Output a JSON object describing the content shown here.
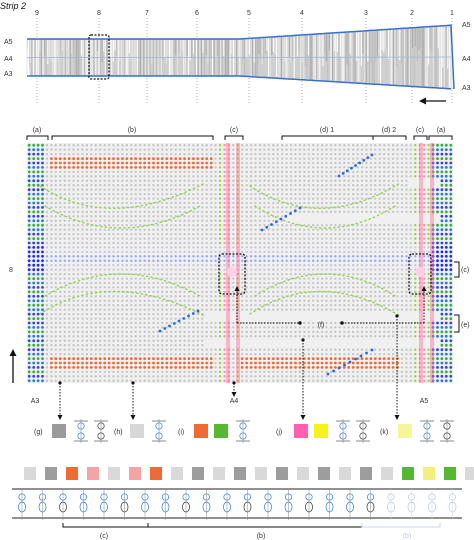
{
  "title": "Strip 2",
  "strip": {
    "position_labels": [
      "9",
      "8",
      "7",
      "6",
      "5",
      "4",
      "3",
      "2",
      "1"
    ],
    "row_labels_left": [
      "A5",
      "A4",
      "A3"
    ],
    "row_labels_right": [
      "A5",
      "A4",
      "A3"
    ]
  },
  "grid": {
    "segment_labels": [
      "(a)",
      "(b)",
      "(c)",
      "(d) 1",
      "(d) 2",
      "(c)",
      "(a)"
    ],
    "left_label": "8",
    "right_markers": [
      "(c)",
      "(e)"
    ],
    "inline_marker": "(f)",
    "bottom_labels": [
      "A3",
      "A4",
      "A5"
    ]
  },
  "legend": {
    "items": [
      {
        "label": "(g)",
        "colors": [
          "#9a9a9a"
        ]
      },
      {
        "label": "(h)",
        "colors": [
          "#d7d7d7"
        ]
      },
      {
        "label": "(i)",
        "colors": [
          "#ef6a35",
          "#55b830"
        ]
      },
      {
        "label": "(j)",
        "colors": [
          "#ff5fb0",
          "#f6f21a"
        ]
      },
      {
        "label": "(k)",
        "colors": [
          "#f7f59a"
        ]
      }
    ]
  },
  "sequence": {
    "colors": [
      "#d9d9d9",
      "#9d9d9d",
      "#ef6a35",
      "#f4a4a4",
      "#d9d9d9",
      "#f4a4a4",
      "#ef6a35",
      "#d9d9d9",
      "#9d9d9d",
      "#d9d9d9",
      "#9d9d9d",
      "#d9d9d9",
      "#9d9d9d",
      "#d9d9d9",
      "#9d9d9d",
      "#d9d9d9",
      "#9d9d9d",
      "#d9d9d9",
      "#55b830",
      "#f0f07a",
      "#55b830",
      "#d9d9d9",
      "#9d9d9d",
      "#d9d9d9"
    ],
    "brackets": [
      "(c)",
      "(b)",
      "(b)"
    ]
  },
  "colors": {
    "blue_dot": "#2a3fd6",
    "green_dot": "#2fb848",
    "orange": "#ef6a35",
    "pink": "#ff5fb0",
    "lime": "#8fd44a",
    "grid_gray": "#c9c9c9"
  }
}
